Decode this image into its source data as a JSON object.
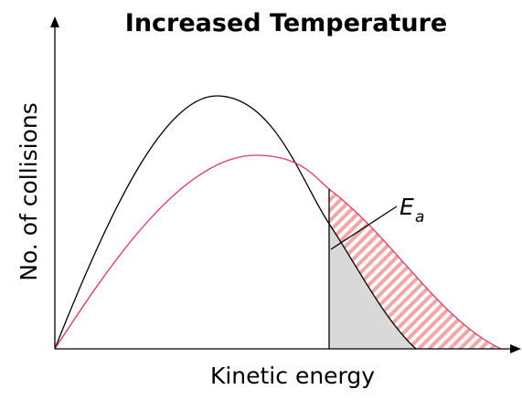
{
  "title": "Increased Temperature",
  "axes": {
    "x_label": "Kinetic energy",
    "y_label": "No. of collisions"
  },
  "annotation": {
    "symbol": "E",
    "subscript": "a"
  }
}
